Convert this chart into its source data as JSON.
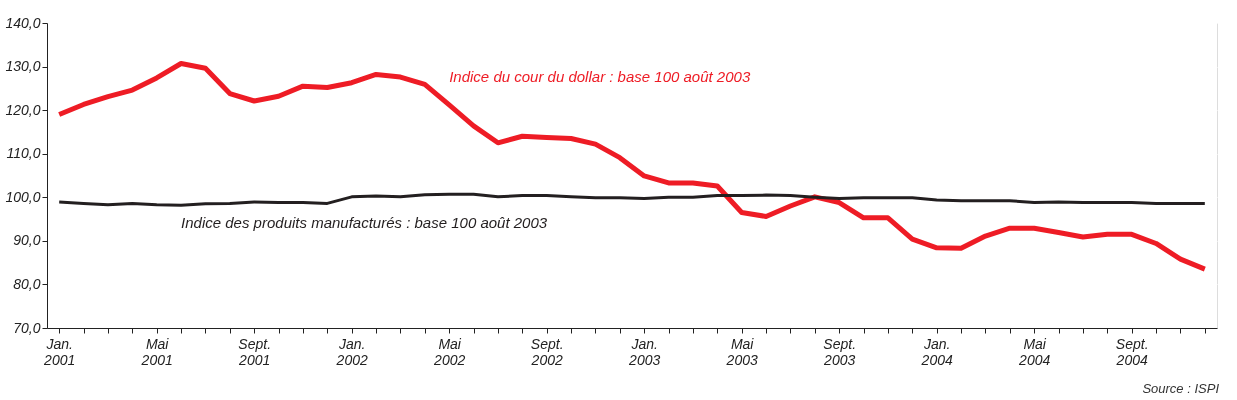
{
  "chart_data": {
    "type": "line",
    "categories": [
      "Jan. 2001",
      null,
      null,
      null,
      "Mai 2001",
      null,
      null,
      null,
      "Sept. 2001",
      null,
      null,
      null,
      "Jan. 2002",
      null,
      null,
      null,
      "Mai 2002",
      null,
      null,
      null,
      "Sept. 2002",
      null,
      null,
      null,
      "Jan. 2003",
      null,
      null,
      null,
      "Mai 2003",
      null,
      null,
      null,
      "Sept. 2003",
      null,
      null,
      null,
      "Jan. 2004",
      null,
      null,
      null,
      "Mai 2004",
      null,
      null,
      null,
      "Sept. 2004",
      null,
      null,
      null
    ],
    "series": [
      {
        "name": "Indice du cour du dollar : base 100 août 2003",
        "color": "#ee1c25",
        "values": [
          119.0,
          121.3,
          123.1,
          124.6,
          127.4,
          130.7,
          129.6,
          123.8,
          122.1,
          123.2,
          125.5,
          125.2,
          126.3,
          128.2,
          127.6,
          125.9,
          121.2,
          116.4,
          112.5,
          114.0,
          113.7,
          113.5,
          112.2,
          109.1,
          104.9,
          103.3,
          103.3,
          102.6,
          96.5,
          95.6,
          98.0,
          100.1,
          98.8,
          95.3,
          95.3,
          90.4,
          88.4,
          88.3,
          91.1,
          92.9,
          92.9,
          91.9,
          90.9,
          91.5,
          91.5,
          89.4,
          85.8,
          83.5
        ]
      },
      {
        "name": "Indice des produits manufacturés : base 100 août 2003",
        "color": "#231f20",
        "values": [
          98.9,
          98.6,
          98.3,
          98.6,
          98.3,
          98.2,
          98.5,
          98.6,
          98.9,
          98.8,
          98.8,
          98.6,
          100.1,
          100.3,
          100.1,
          100.6,
          100.7,
          100.7,
          100.1,
          100.4,
          100.4,
          100.1,
          99.9,
          99.9,
          99.7,
          100.0,
          100.0,
          100.4,
          100.4,
          100.5,
          100.4,
          100.0,
          99.7,
          99.9,
          99.9,
          99.9,
          99.4,
          99.2,
          99.2,
          99.2,
          98.8,
          98.9,
          98.8,
          98.8,
          98.8,
          98.6,
          98.6,
          98.6
        ]
      }
    ],
    "ylim": [
      70,
      140
    ],
    "yticks": [
      {
        "value": 70,
        "label": "70,0"
      },
      {
        "value": 80,
        "label": "80,0"
      },
      {
        "value": 90,
        "label": "90,0"
      },
      {
        "value": 100,
        "label": "100,0"
      },
      {
        "value": 110,
        "label": "110,0"
      },
      {
        "value": 120,
        "label": "120,0"
      },
      {
        "value": 130,
        "label": "130,0"
      },
      {
        "value": 140,
        "label": "140,0"
      }
    ],
    "grid": true,
    "annotations": [
      "Source : ISPI"
    ]
  }
}
